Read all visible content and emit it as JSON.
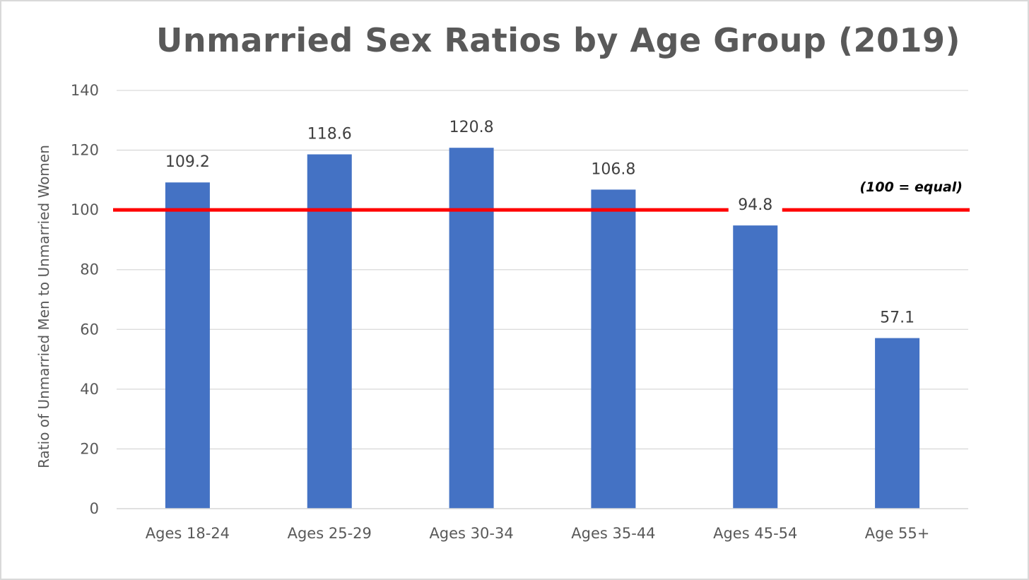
{
  "chart_data": {
    "type": "bar",
    "title": "Unmarried Sex Ratios by Age Group (2019)",
    "xlabel": "",
    "ylabel": "Ratio of Unmarried Men to Unmarried Women",
    "categories": [
      "Ages 18-24",
      "Ages 25-29",
      "Ages 30-34",
      "Ages 35-44",
      "Ages 45-54",
      "Age 55+"
    ],
    "values": [
      109.2,
      118.6,
      120.8,
      106.8,
      94.8,
      57.1
    ],
    "value_labels": [
      "109.2",
      "118.6",
      "120.8",
      "106.8",
      "94.8",
      "57.1"
    ],
    "ylim": [
      0,
      140
    ],
    "yticks": [
      0,
      20,
      40,
      60,
      80,
      100,
      120,
      140
    ],
    "grid": true,
    "legend": "none",
    "bar_color": "#4472C4",
    "reference_line": {
      "value": 100,
      "label": "(100 = equal)",
      "color": "#FF0000"
    }
  }
}
